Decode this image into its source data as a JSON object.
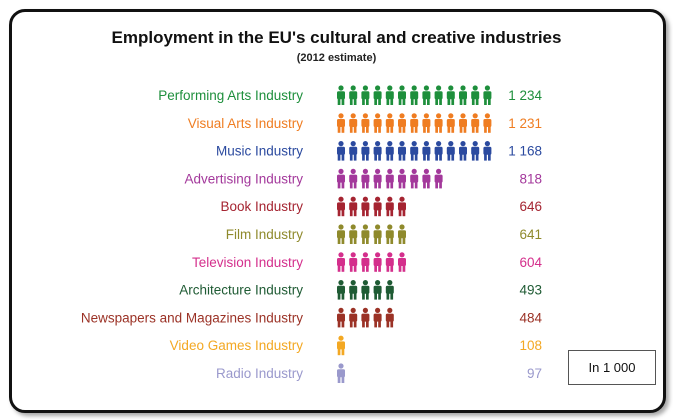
{
  "chart_data": {
    "type": "bar",
    "title": "Employment in the EU's cultural and creative industries",
    "subtitle": "(2012 estimate)",
    "unit": "In 1 000",
    "categories": [
      "Performing Arts Industry",
      "Visual Arts Industry",
      "Music Industry",
      "Advertising Industry",
      "Book Industry",
      "Film Industry",
      "Television Industry",
      "Architecture Industry",
      "Newspapers and Magazines Industry",
      "Video Games Industry",
      "Radio Industry"
    ],
    "values": [
      1234,
      1231,
      1168,
      818,
      646,
      641,
      604,
      493,
      484,
      108,
      97
    ],
    "value_labels": [
      "1 234",
      "1 231",
      "1 168",
      "818",
      "646",
      "641",
      "604",
      "493",
      "484",
      "108",
      "97"
    ],
    "icons_shown": [
      13,
      13,
      13,
      9,
      6,
      6,
      6,
      5,
      5,
      1,
      1
    ],
    "icon": "person-icon",
    "colors": [
      "#1e8f3c",
      "#ef7d22",
      "#2b4a9f",
      "#a3389b",
      "#a52431",
      "#8f8a2c",
      "#d42f8c",
      "#1f5b34",
      "#9b3226",
      "#f3a823",
      "#9a99cc"
    ],
    "grid": false,
    "legend": "none"
  }
}
